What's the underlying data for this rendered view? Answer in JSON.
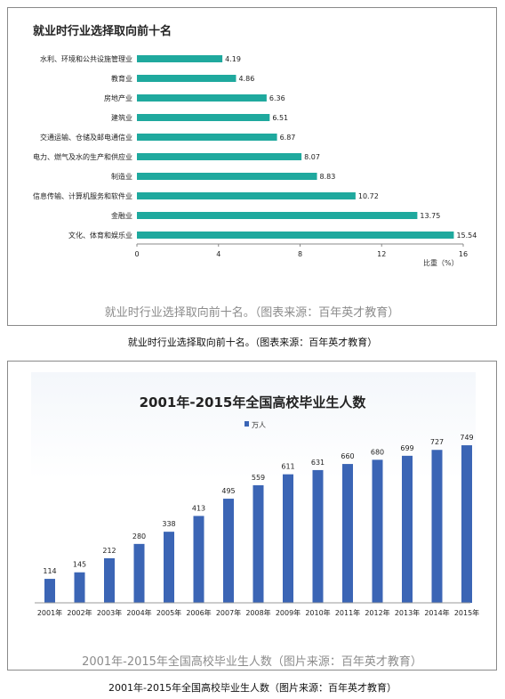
{
  "chart_data": [
    {
      "type": "bar",
      "orientation": "horizontal",
      "title": "就业时行业选择取向前十名",
      "xlabel": "比重（%）",
      "xlim": [
        0,
        16
      ],
      "xticks": [
        "0",
        "4",
        "8",
        "12",
        "16"
      ],
      "categories": [
        "水利、环境和公共设施管理业",
        "教育业",
        "房地产业",
        "建筑业",
        "交通运输、仓储及邮电通信业",
        "电力、燃气及水的生产和供应业",
        "制造业",
        "信息传输、计算机服务和软件业",
        "金融业",
        "文化、体育和娱乐业"
      ],
      "values": [
        4.19,
        4.86,
        6.36,
        6.51,
        6.87,
        8.07,
        8.83,
        10.72,
        13.75,
        15.54
      ],
      "value_labels": [
        "4.19",
        "4.86",
        "6.36",
        "6.51",
        "6.87",
        "8.07",
        "8.83",
        "10.72",
        "13.75",
        "15.54"
      ],
      "bar_color": "#1fa99e",
      "grid": false
    },
    {
      "type": "bar",
      "orientation": "vertical",
      "title": "2001年-2015年全国高校毕业生人数",
      "legend": {
        "entries": [
          "万人"
        ],
        "placement": "top-left"
      },
      "categories": [
        "2001年",
        "2002年",
        "2003年",
        "2004年",
        "2005年",
        "2006年",
        "2007年",
        "2008年",
        "2009年",
        "2010年",
        "2011年",
        "2012年",
        "2013年",
        "2014年",
        "2015年"
      ],
      "values": [
        114,
        145,
        212,
        280,
        338,
        413,
        495,
        559,
        611,
        631,
        660,
        680,
        699,
        727,
        749
      ],
      "value_labels": [
        "114",
        "145",
        "212",
        "280",
        "338",
        "413",
        "495",
        "559",
        "611",
        "631",
        "660",
        "680",
        "699",
        "727",
        "749"
      ],
      "ylim": [
        0,
        800
      ],
      "bar_color": "#3b65b5",
      "grid": false
    }
  ],
  "captions": {
    "chart1_inner": "就业时行业选择取向前十名。（图表来源：百年英才教育）",
    "chart1_outer": "就业时行业选择取向前十名。（图表来源：百年英才教育）",
    "chart2_inner": "2001年-2015年全国高校毕业生人数（图片来源：百年英才教育）",
    "chart2_outer": "2001年-2015年全国高校毕业生人数（图片来源：百年英才教育）"
  }
}
